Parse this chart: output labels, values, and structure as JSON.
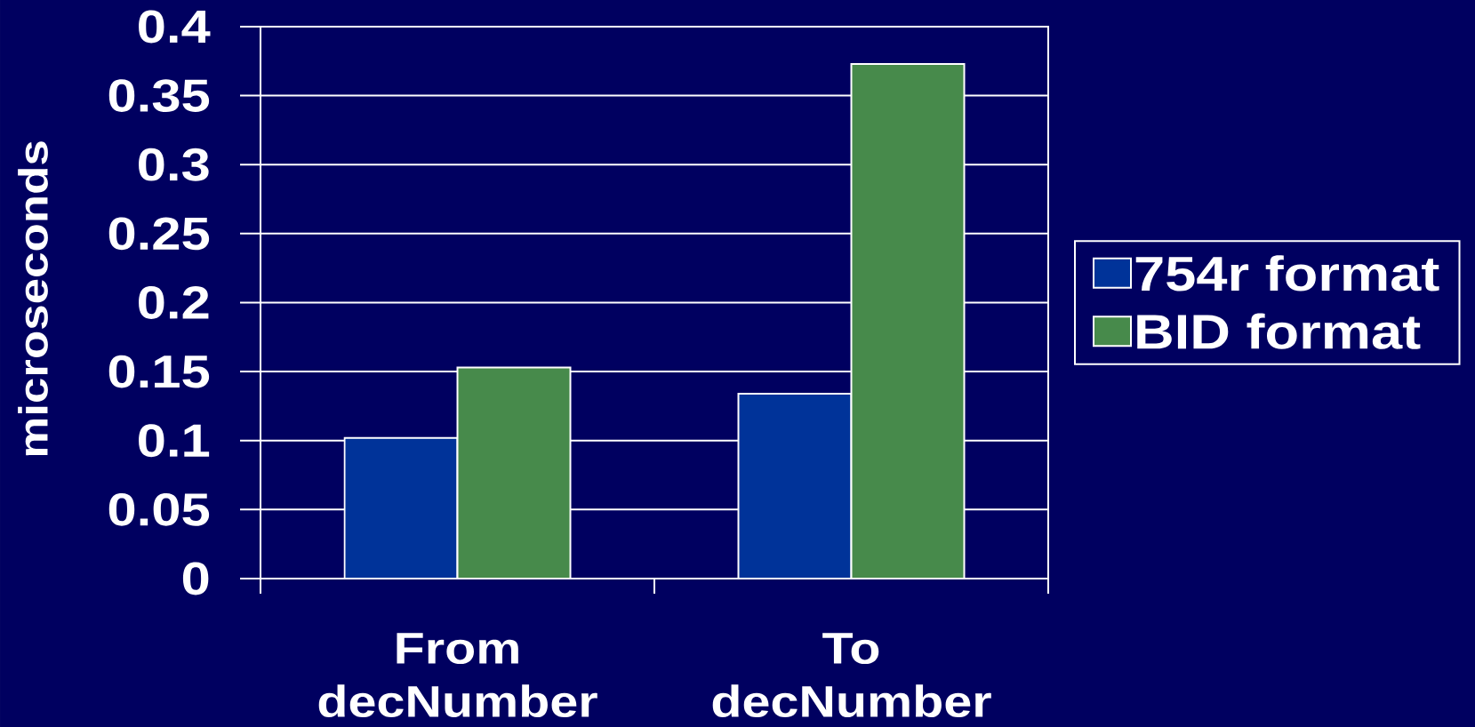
{
  "chart_data": {
    "type": "bar",
    "ylabel": "microseconds",
    "categories": [
      "From decNumber",
      "To decNumber"
    ],
    "series": [
      {
        "name": "754r format",
        "color": "#003399",
        "values": [
          0.102,
          0.134
        ]
      },
      {
        "name": "BID format",
        "color": "#478a4b",
        "values": [
          0.153,
          0.373
        ]
      }
    ],
    "ylim": [
      0,
      0.4
    ],
    "yticks": [
      0,
      0.05,
      0.1,
      0.15,
      0.2,
      0.25,
      0.3,
      0.35,
      0.4
    ],
    "grid": "y",
    "legend": "right"
  }
}
